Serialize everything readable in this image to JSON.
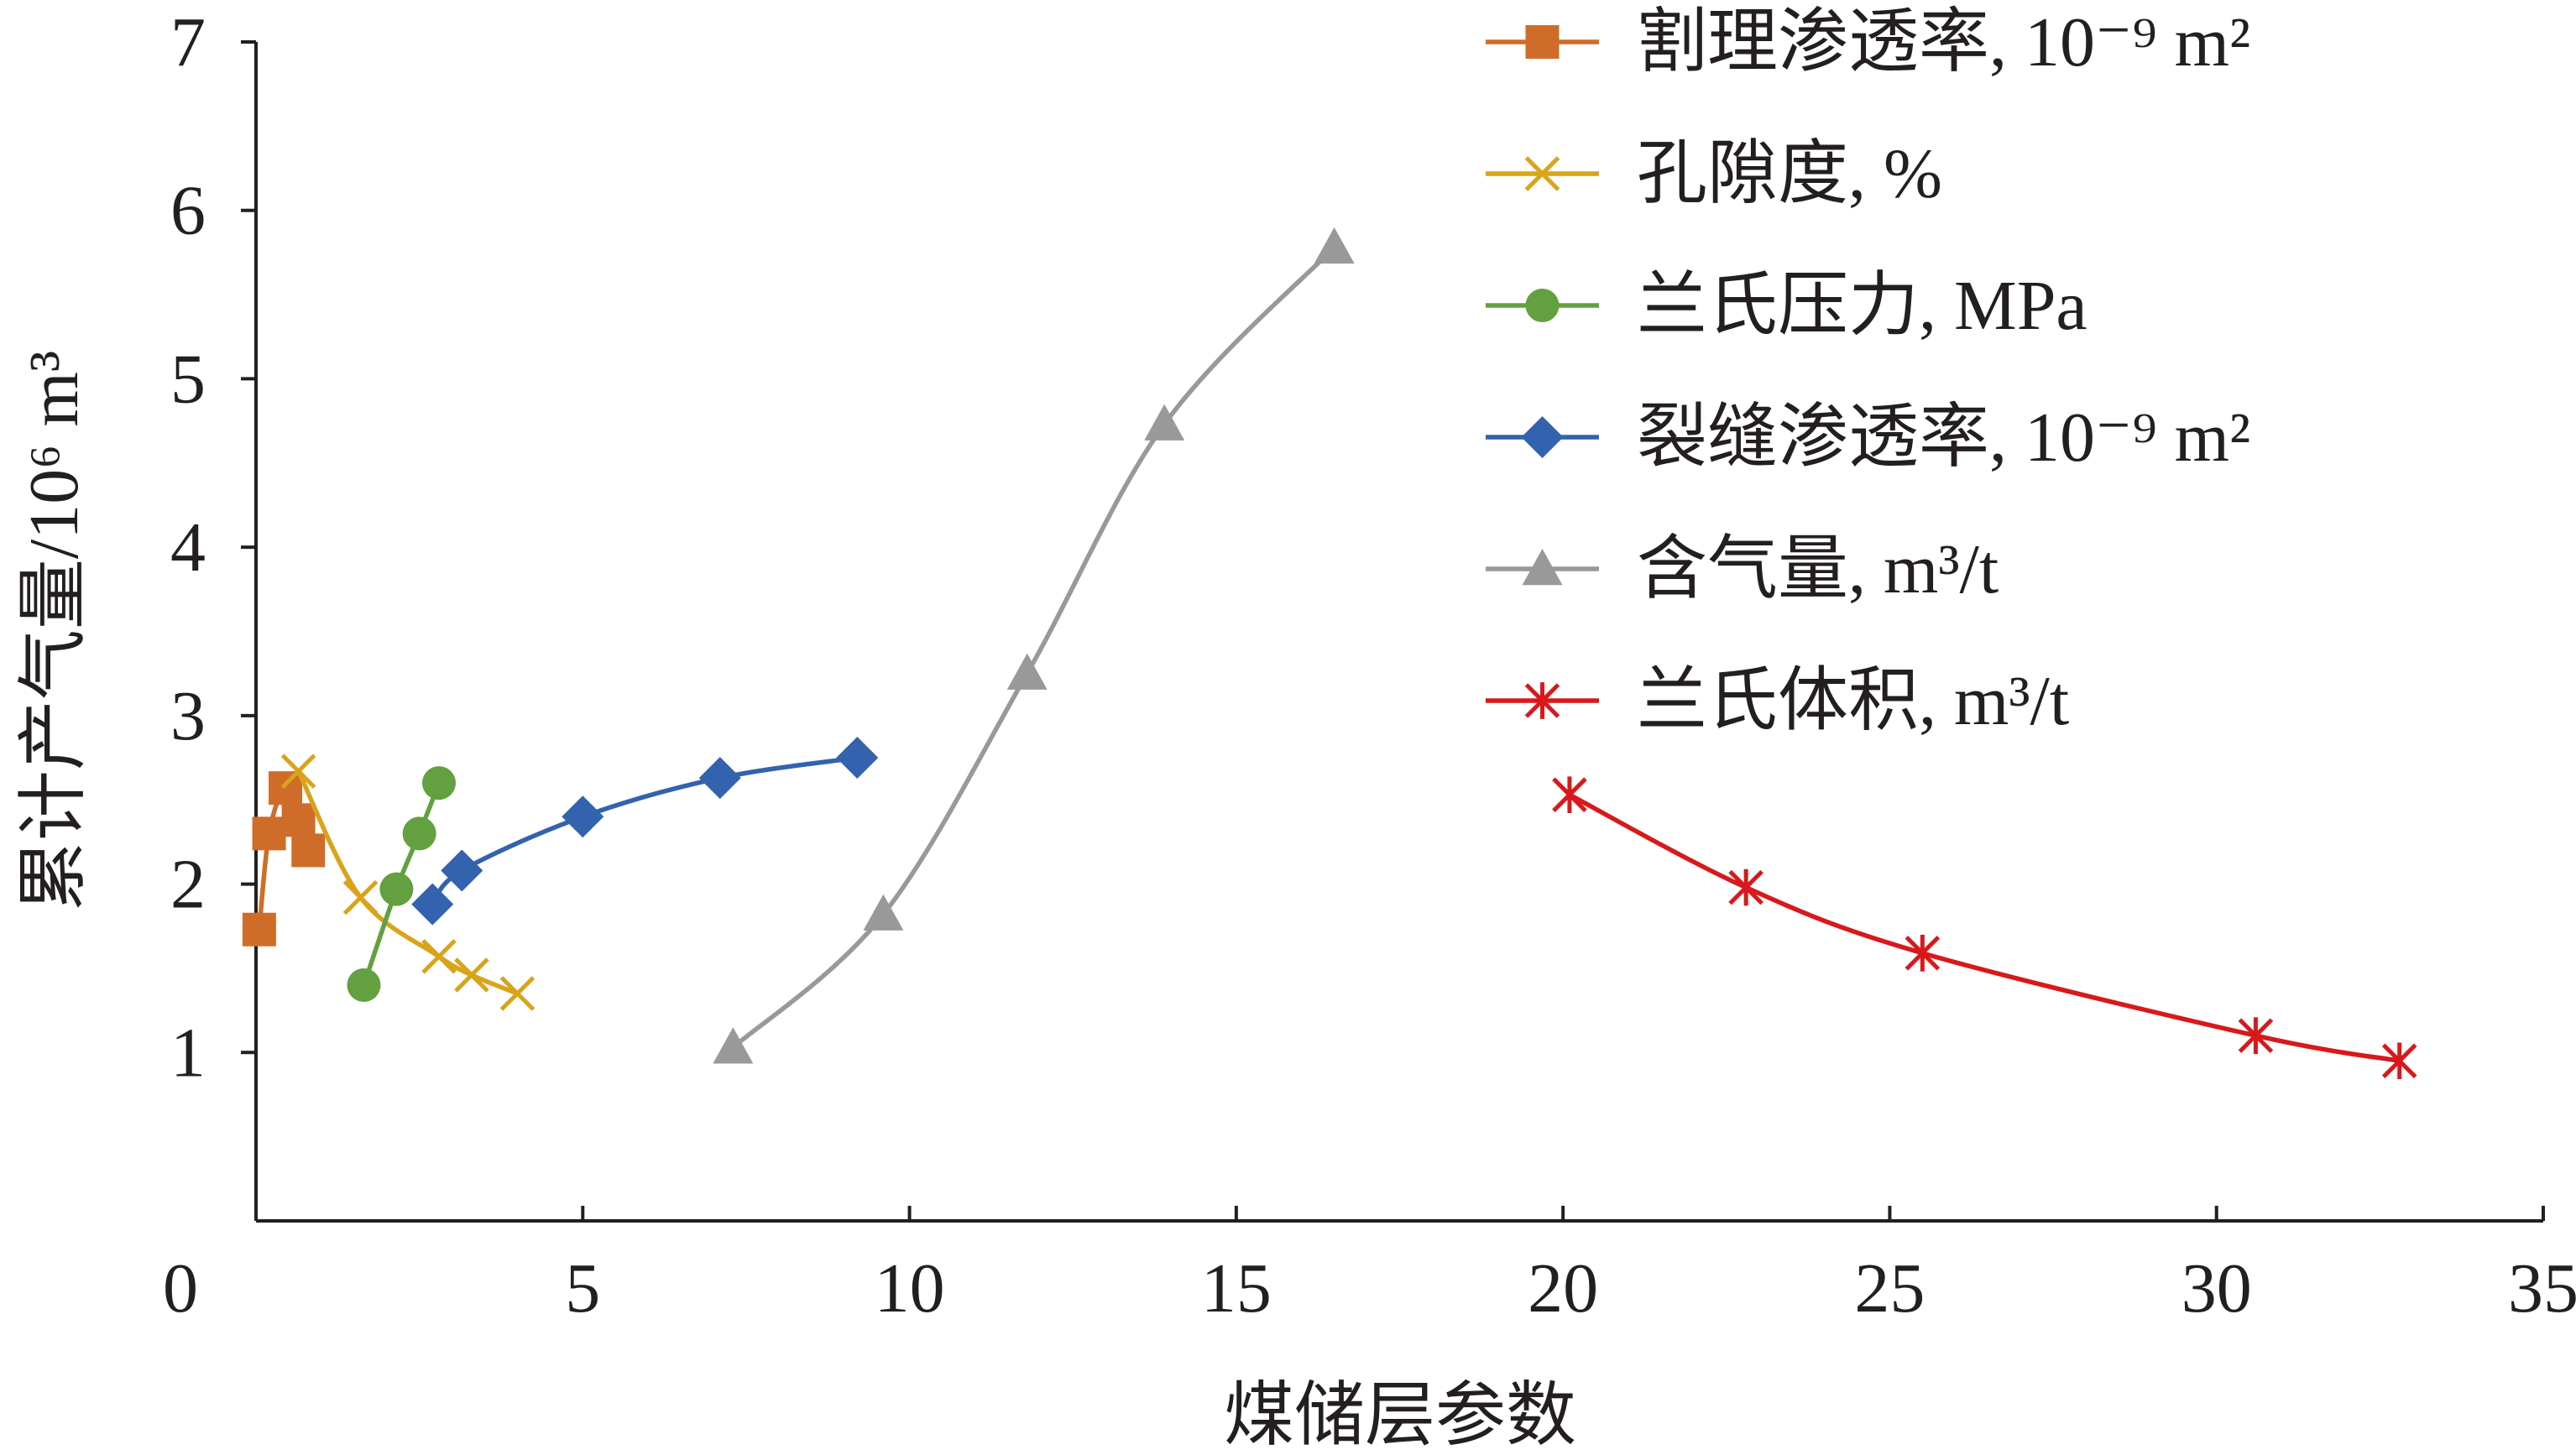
{
  "chart_data": {
    "type": "line",
    "title": "",
    "xlabel": "煤储层参数",
    "ylabel": "累计产气量/10⁶ m³",
    "xlim": [
      0,
      35
    ],
    "ylim": [
      0,
      7
    ],
    "x_ticks": [
      "0",
      "5",
      "10",
      "15",
      "20",
      "25",
      "30",
      "35"
    ],
    "y_ticks": [
      "1",
      "2",
      "3",
      "4",
      "5",
      "6",
      "7"
    ],
    "grid": false,
    "legend_position": "top-right",
    "series": [
      {
        "name": "割理渗透率, 10⁻⁹ m²",
        "color": "#d06c2a",
        "marker": "square",
        "points": [
          [
            0.05,
            1.73
          ],
          [
            0.2,
            2.3
          ],
          [
            0.45,
            2.57
          ],
          [
            0.65,
            2.38
          ],
          [
            0.8,
            2.2
          ]
        ]
      },
      {
        "name": "孔隙度, %",
        "color": "#d9a31a",
        "marker": "x",
        "points": [
          [
            0.65,
            2.67
          ],
          [
            1.6,
            1.92
          ],
          [
            2.8,
            1.57
          ],
          [
            3.3,
            1.46
          ],
          [
            4.0,
            1.35
          ]
        ]
      },
      {
        "name": "兰氏压力, MPa",
        "color": "#63a03f",
        "marker": "circle",
        "points": [
          [
            1.65,
            1.4
          ],
          [
            2.15,
            1.97
          ],
          [
            2.5,
            2.3
          ],
          [
            2.8,
            2.6
          ]
        ]
      },
      {
        "name": "裂缝渗透率, 10⁻⁹ m²",
        "color": "#3362ae",
        "marker": "diamond",
        "points": [
          [
            2.7,
            1.88
          ],
          [
            3.15,
            2.08
          ],
          [
            5.0,
            2.4
          ],
          [
            7.1,
            2.63
          ],
          [
            9.2,
            2.75
          ]
        ]
      },
      {
        "name": "含气量, m³/t",
        "color": "#999999",
        "marker": "triangle",
        "points": [
          [
            7.3,
            1.03
          ],
          [
            9.6,
            1.82
          ],
          [
            11.8,
            3.25
          ],
          [
            13.9,
            4.73
          ],
          [
            16.5,
            5.78
          ]
        ]
      },
      {
        "name": "兰氏体积, m³/t",
        "color": "#d7191c",
        "marker": "star",
        "points": [
          [
            20.1,
            2.53
          ],
          [
            22.8,
            1.98
          ],
          [
            25.5,
            1.59
          ],
          [
            30.6,
            1.1
          ],
          [
            32.8,
            0.95
          ]
        ]
      }
    ]
  }
}
